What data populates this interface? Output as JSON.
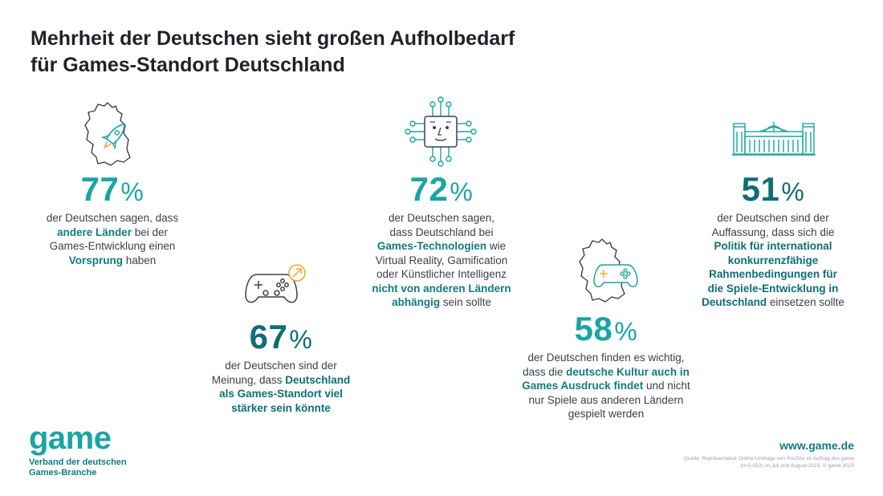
{
  "title": [
    "Mehrheit der Deutschen sieht großen Aufholbedarf",
    "für Games-Standort Deutschland"
  ],
  "stats": [
    {
      "value": "77",
      "unit": "%",
      "text": [
        "der Deutschen sagen, dass",
        "andere Länder",
        " bei der",
        "Games-Entwicklung einen",
        "Vorsprung",
        " haben"
      ],
      "icon": "germany-rocket-icon"
    },
    {
      "value": "67",
      "unit": "%",
      "text": [
        "der Deutschen sind der",
        "Meinung, dass ",
        "Deutschland",
        "als Games-Standort viel",
        "stärker sein könnte"
      ],
      "icon": "gamepad-growth-icon"
    },
    {
      "value": "72",
      "unit": "%",
      "text": [
        "der Deutschen sagen,",
        "dass Deutschland bei",
        "Games-Technologien",
        " wie",
        "Virtual Reality, Gamification",
        "oder Künstlicher Intelligenz",
        "nicht von anderen Ländern",
        "abhängig",
        " sein sollte"
      ],
      "icon": "ai-chip-icon"
    },
    {
      "value": "58",
      "unit": "%",
      "text": [
        "der Deutschen finden es wichtig,",
        "dass die ",
        "deutsche Kultur auch in",
        "Games Ausdruck findet",
        " und nicht",
        "nur Spiele aus anderen Ländern",
        "gespielt werden"
      ],
      "icon": "germany-gamepad-icon"
    },
    {
      "value": "51",
      "unit": "%",
      "text": [
        "der Deutschen sind der",
        "Auffassung, dass sich die",
        "Politik für international",
        "konkurrenzfähige",
        "Rahmenbedingungen für",
        "die Spiele-Entwicklung in",
        "Deutschland",
        " einsetzen sollte"
      ],
      "icon": "reichstag-icon"
    }
  ],
  "logo": {
    "word": "game",
    "sub": [
      "Verband der deutschen",
      "Games-Branche"
    ]
  },
  "website": "www.game.de",
  "source": [
    "Quelle: Repräsentative Online-Umfrage von YouGov im Auftrag des game",
    "(n=2.053) im Juli und August 2023. © game 2023"
  ],
  "colors": {
    "teal": "#1aa5a3",
    "dark_teal": "#0e6e74",
    "accent_orange": "#f0a830",
    "text": "#3a4149"
  }
}
